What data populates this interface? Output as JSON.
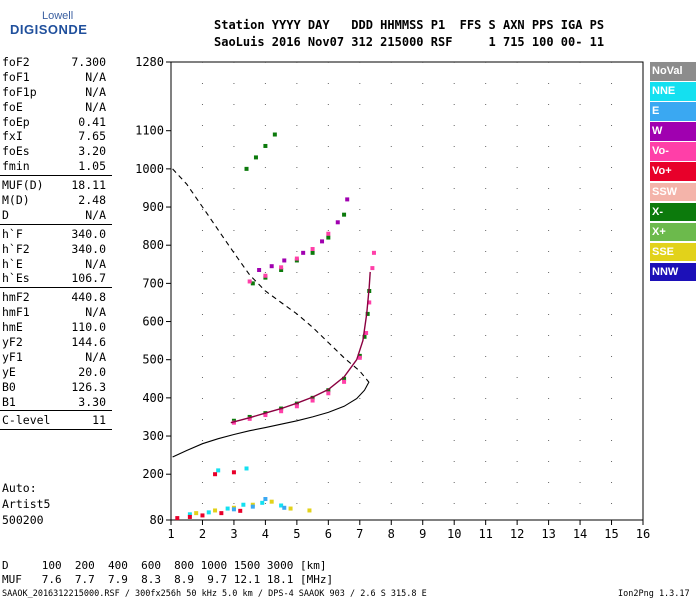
{
  "logo": {
    "line1": "Lowell",
    "line2": "DIGISONDE"
  },
  "header": {
    "line1": "Station YYYY DAY   DDD HHMMSS P1  FFS S AXN PPS IGA PS",
    "line2": "SaoLuis 2016 Nov07 312 215000 RSF     1 715 100 00- 11"
  },
  "params": [
    [
      {
        "k": "foF2",
        "v": "7.300"
      },
      {
        "k": "foF1",
        "v": "N/A"
      },
      {
        "k": "foF1p",
        "v": "N/A"
      },
      {
        "k": "foE",
        "v": "N/A"
      },
      {
        "k": "foEp",
        "v": "0.41"
      },
      {
        "k": "fxI",
        "v": "7.65"
      },
      {
        "k": "foEs",
        "v": "3.20"
      },
      {
        "k": "fmin",
        "v": "1.05"
      }
    ],
    [
      {
        "k": "MUF(D)",
        "v": "18.11"
      },
      {
        "k": "M(D)",
        "v": "2.48"
      },
      {
        "k": "D",
        "v": "N/A"
      }
    ],
    [
      {
        "k": "h`F",
        "v": "340.0"
      },
      {
        "k": "h`F2",
        "v": "340.0"
      },
      {
        "k": "h`E",
        "v": "N/A"
      },
      {
        "k": "h`Es",
        "v": "106.7"
      }
    ],
    [
      {
        "k": "hmF2",
        "v": "440.8"
      },
      {
        "k": "hmF1",
        "v": "N/A"
      },
      {
        "k": "hmE",
        "v": "110.0"
      },
      {
        "k": "yF2",
        "v": "144.6"
      },
      {
        "k": "yF1",
        "v": "N/A"
      },
      {
        "k": "yE",
        "v": "20.0"
      },
      {
        "k": "B0",
        "v": "126.3"
      },
      {
        "k": "B1",
        "v": "3.30"
      }
    ],
    [
      {
        "k": "C-level",
        "v": "11"
      }
    ]
  ],
  "auto": {
    "line1": "Auto:",
    "line2": "Artist5",
    "line3": "500200"
  },
  "legend": [
    {
      "label": "NoVal",
      "color": "#8c8c8c"
    },
    {
      "label": "NNE",
      "color": "#14e0f0"
    },
    {
      "label": "E",
      "color": "#3aa8f2"
    },
    {
      "label": "W",
      "color": "#a000b0"
    },
    {
      "label": "Vo-",
      "color": "#ff3fa8"
    },
    {
      "label": "Vo+",
      "color": "#e8002a"
    },
    {
      "label": "SSW",
      "color": "#f4b4aa"
    },
    {
      "label": "X-",
      "color": "#0c7a0c"
    },
    {
      "label": "X+",
      "color": "#6cba4c"
    },
    {
      "label": "SSE",
      "color": "#e2d21a"
    },
    {
      "label": "NNW",
      "color": "#1c10b8"
    }
  ],
  "footer": {
    "line1": "D     100  200  400  600  800 1000 1500 3000 [km]",
    "line2": "MUF   7.6  7.7  7.9  8.3  8.9  9.7 12.1 18.1 [MHz]",
    "line3": "SAAOK_2016312215000.RSF / 300fx256h 50 kHz 5.0 km / DPS-4 SAAOK 903 / 2.6 S 315.8 E",
    "version": "Ion2Png 1.3.17"
  },
  "chart_data": {
    "type": "scatter",
    "x_ticks": [
      "1",
      "2",
      "3",
      "4",
      "5",
      "6",
      "7",
      "8",
      "9",
      "10",
      "11",
      "12",
      "13",
      "14",
      "15",
      "16"
    ],
    "y_ticks": [
      "80",
      "200",
      "300",
      "400",
      "500",
      "600",
      "700",
      "800",
      "900",
      "1000",
      "1100",
      "1280"
    ],
    "xlim": [
      1,
      16
    ],
    "ylim": [
      80,
      1280
    ],
    "series": [
      {
        "name": "X-",
        "color": "#0c7a0c",
        "points": [
          [
            3.0,
            340
          ],
          [
            3.5,
            350
          ],
          [
            4.0,
            360
          ],
          [
            4.5,
            372
          ],
          [
            5.0,
            385
          ],
          [
            5.5,
            400
          ],
          [
            6.0,
            420
          ],
          [
            6.5,
            450
          ],
          [
            7.0,
            510
          ],
          [
            7.15,
            560
          ],
          [
            7.25,
            620
          ],
          [
            7.3,
            680
          ],
          [
            3.6,
            700
          ],
          [
            4.0,
            715
          ],
          [
            4.5,
            735
          ],
          [
            5.0,
            760
          ],
          [
            5.5,
            780
          ],
          [
            6.0,
            820
          ],
          [
            6.5,
            880
          ],
          [
            3.4,
            1000
          ],
          [
            3.7,
            1030
          ],
          [
            4.0,
            1060
          ],
          [
            4.3,
            1090
          ]
        ]
      },
      {
        "name": "Vo-",
        "color": "#ff3fa8",
        "points": [
          [
            3.0,
            335
          ],
          [
            3.5,
            345
          ],
          [
            4.0,
            355
          ],
          [
            4.5,
            365
          ],
          [
            5.0,
            378
          ],
          [
            5.5,
            393
          ],
          [
            6.0,
            412
          ],
          [
            6.5,
            442
          ],
          [
            7.0,
            505
          ],
          [
            7.2,
            570
          ],
          [
            7.3,
            650
          ],
          [
            7.4,
            740
          ],
          [
            7.45,
            780
          ],
          [
            3.5,
            705
          ],
          [
            4.0,
            720
          ],
          [
            4.5,
            742
          ],
          [
            5.0,
            765
          ],
          [
            5.5,
            790
          ],
          [
            6.0,
            830
          ]
        ]
      },
      {
        "name": "W",
        "color": "#a000b0",
        "points": [
          [
            3.8,
            735
          ],
          [
            4.2,
            745
          ],
          [
            4.6,
            760
          ],
          [
            5.2,
            780
          ],
          [
            5.8,
            810
          ],
          [
            6.3,
            860
          ],
          [
            6.6,
            920
          ]
        ]
      },
      {
        "name": "NNE",
        "color": "#14e0f0",
        "points": [
          [
            1.6,
            95
          ],
          [
            2.2,
            100
          ],
          [
            2.8,
            110
          ],
          [
            3.3,
            120
          ],
          [
            3.9,
            125
          ],
          [
            4.5,
            118
          ],
          [
            2.5,
            210
          ],
          [
            3.4,
            215
          ]
        ]
      },
      {
        "name": "SSE",
        "color": "#e2d21a",
        "points": [
          [
            1.8,
            98
          ],
          [
            2.4,
            105
          ],
          [
            3.0,
            112
          ],
          [
            3.6,
            120
          ],
          [
            4.2,
            128
          ],
          [
            4.8,
            110
          ],
          [
            5.4,
            105
          ]
        ]
      },
      {
        "name": "E",
        "color": "#3aa8f2",
        "points": [
          [
            3.0,
            108
          ],
          [
            3.6,
            115
          ],
          [
            4.0,
            135
          ],
          [
            4.6,
            112
          ]
        ]
      },
      {
        "name": "Vo+",
        "color": "#e8002a",
        "points": [
          [
            1.2,
            85
          ],
          [
            1.6,
            88
          ],
          [
            2.0,
            92
          ],
          [
            2.6,
            98
          ],
          [
            3.2,
            104
          ],
          [
            2.4,
            200
          ],
          [
            3.0,
            205
          ]
        ]
      }
    ],
    "profile_solid": [
      [
        1.05,
        245
      ],
      [
        1.5,
        262
      ],
      [
        2.0,
        280
      ],
      [
        2.5,
        293
      ],
      [
        3.0,
        304
      ],
      [
        3.5,
        314
      ],
      [
        4.0,
        322
      ],
      [
        4.5,
        331
      ],
      [
        5.0,
        340
      ],
      [
        5.5,
        350
      ],
      [
        6.0,
        362
      ],
      [
        6.5,
        378
      ],
      [
        6.9,
        398
      ],
      [
        7.15,
        420
      ],
      [
        7.28,
        440
      ]
    ],
    "profile_dashed": [
      [
        1.05,
        1000
      ],
      [
        1.5,
        960
      ],
      [
        2.0,
        900
      ],
      [
        2.5,
        840
      ],
      [
        3.0,
        780
      ],
      [
        3.5,
        722
      ],
      [
        4.0,
        680
      ],
      [
        4.5,
        650
      ],
      [
        5.0,
        620
      ],
      [
        5.5,
        585
      ],
      [
        6.0,
        545
      ],
      [
        6.5,
        505
      ],
      [
        7.0,
        470
      ],
      [
        7.3,
        440
      ]
    ],
    "trace_curve": [
      [
        2.9,
        335
      ],
      [
        3.5,
        348
      ],
      [
        4.0,
        360
      ],
      [
        4.5,
        372
      ],
      [
        5.0,
        386
      ],
      [
        5.5,
        402
      ],
      [
        6.0,
        422
      ],
      [
        6.5,
        455
      ],
      [
        6.9,
        500
      ],
      [
        7.1,
        550
      ],
      [
        7.22,
        620
      ],
      [
        7.3,
        690
      ],
      [
        7.33,
        730
      ]
    ]
  }
}
